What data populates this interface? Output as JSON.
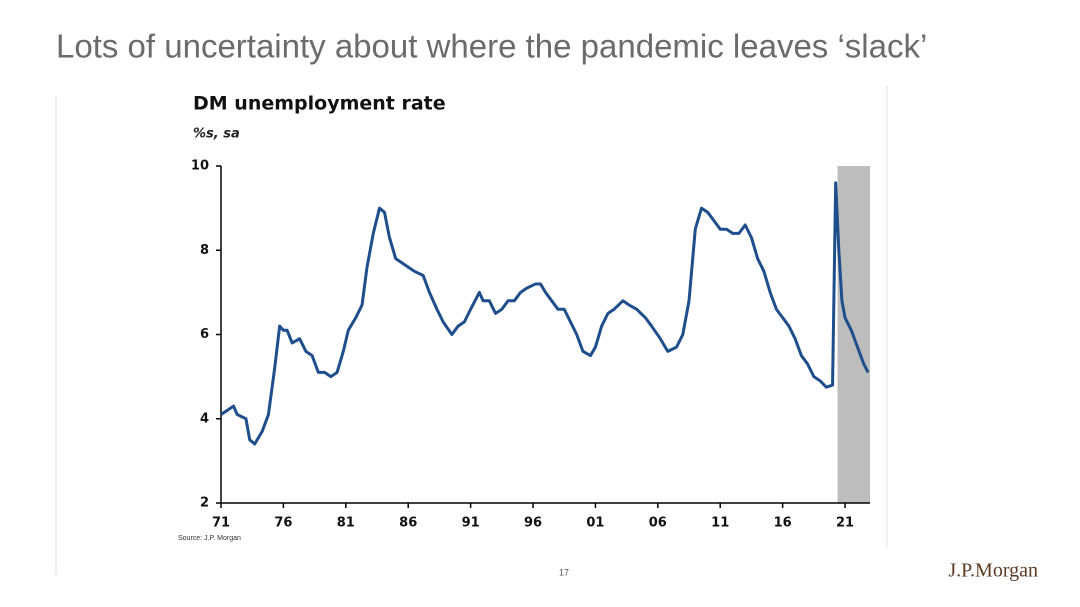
{
  "slide_title": "Lots of uncertainty about where the pandemic leaves ‘slack’",
  "page_number": "17",
  "logo": "J.P.Morgan",
  "chart_data": {
    "type": "line",
    "title": "DM unemployment rate",
    "subtitle": "%s, sa",
    "source": "Source: J.P. Morgan",
    "x": [
      1971.0,
      1971.5,
      1972.0,
      1972.3,
      1973.0,
      1973.3,
      1973.7,
      1974.3,
      1974.8,
      1975.3,
      1975.7,
      1976.0,
      1976.3,
      1976.7,
      1977.3,
      1977.8,
      1978.3,
      1978.8,
      1979.3,
      1979.8,
      1980.3,
      1980.8,
      1981.2,
      1981.8,
      1982.3,
      1982.7,
      1983.2,
      1983.7,
      1984.1,
      1984.5,
      1985.0,
      1985.5,
      1986.0,
      1986.5,
      1987.2,
      1987.7,
      1988.3,
      1988.8,
      1989.5,
      1990.0,
      1990.5,
      1991.0,
      1991.7,
      1992.0,
      1992.5,
      1993.0,
      1993.5,
      1994.0,
      1994.5,
      1995.0,
      1995.5,
      1996.2,
      1996.6,
      1997.0,
      1997.5,
      1998.0,
      1998.5,
      1999.0,
      1999.5,
      2000.0,
      2000.6,
      2001.0,
      2001.5,
      2002.0,
      2002.5,
      2003.2,
      2003.7,
      2004.3,
      2005.0,
      2005.5,
      2006.2,
      2006.8,
      2007.5,
      2008.0,
      2008.5,
      2009.0,
      2009.5,
      2010.0,
      2010.5,
      2011.0,
      2011.5,
      2012.0,
      2012.5,
      2013.0,
      2013.5,
      2014.0,
      2014.5,
      2015.0,
      2015.5,
      2016.0,
      2016.5,
      2017.0,
      2017.5,
      2018.0,
      2018.5,
      2019.0,
      2019.5,
      2020.0,
      2020.25,
      2020.5,
      2020.75,
      2021.0,
      2021.5,
      2022.0,
      2022.5,
      2022.85
    ],
    "series": [
      {
        "name": "DM unemployment rate",
        "color": "#1f4e8c",
        "values": [
          4.1,
          4.2,
          4.3,
          4.1,
          4.0,
          3.5,
          3.4,
          3.7,
          4.1,
          5.2,
          6.2,
          6.1,
          6.1,
          5.8,
          5.9,
          5.6,
          5.5,
          5.1,
          5.1,
          5.0,
          5.1,
          5.6,
          6.1,
          6.4,
          6.7,
          7.6,
          8.4,
          9.0,
          8.9,
          8.3,
          7.8,
          7.7,
          7.6,
          7.5,
          7.4,
          7.0,
          6.6,
          6.3,
          6.0,
          6.2,
          6.3,
          6.6,
          7.0,
          6.8,
          6.8,
          6.5,
          6.6,
          6.8,
          6.8,
          7.0,
          7.1,
          7.2,
          7.2,
          7.0,
          6.8,
          6.6,
          6.6,
          6.3,
          6.0,
          5.6,
          5.5,
          5.7,
          6.2,
          6.5,
          6.6,
          6.8,
          6.7,
          6.6,
          6.4,
          6.2,
          5.9,
          5.6,
          5.7,
          6.0,
          6.8,
          8.5,
          9.0,
          8.9,
          8.7,
          8.5,
          8.5,
          8.4,
          8.4,
          8.6,
          8.3,
          7.8,
          7.5,
          7.0,
          6.6,
          6.4,
          6.2,
          5.9,
          5.5,
          5.3,
          5.0,
          4.9,
          4.75,
          4.8,
          9.6,
          8.0,
          6.8,
          6.4,
          6.1,
          5.7,
          5.3,
          5.1
        ]
      }
    ],
    "shaded_xrange": [
      2020.4,
      2023
    ],
    "shade_color": "#bdbdbd",
    "xlim": [
      1971,
      2023
    ],
    "xticks": [
      {
        "value": 1971,
        "label": "71"
      },
      {
        "value": 1976,
        "label": "76"
      },
      {
        "value": 1981,
        "label": "81"
      },
      {
        "value": 1986,
        "label": "86"
      },
      {
        "value": 1991,
        "label": "91"
      },
      {
        "value": 1996,
        "label": "96"
      },
      {
        "value": 2001,
        "label": "01"
      },
      {
        "value": 2006,
        "label": "06"
      },
      {
        "value": 2011,
        "label": "11"
      },
      {
        "value": 2016,
        "label": "16"
      },
      {
        "value": 2021,
        "label": "21"
      }
    ],
    "ylim": [
      2,
      10
    ],
    "yticks": [
      2,
      4,
      6,
      8,
      10
    ],
    "grid": false
  }
}
